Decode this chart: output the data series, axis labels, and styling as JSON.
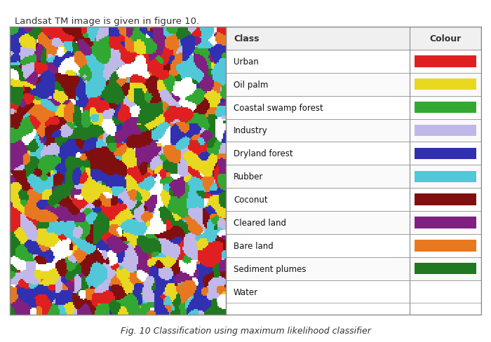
{
  "title_top": "Landsat TM image is given in figure 10.",
  "caption": "Fig. 10 Classification using maximum likelihood classifier",
  "table_header": [
    "Class",
    "Colour"
  ],
  "classes": [
    "Urban",
    "Oil palm",
    "Coastal swamp forest",
    "Industry",
    "Dryland forest",
    "Rubber",
    "Coconut",
    "Cleared land",
    "Bare land",
    "Sediment plumes",
    "Water"
  ],
  "colors": [
    "#e02020",
    "#e8d820",
    "#32a832",
    "#c0b8e8",
    "#3030b0",
    "#50c8d8",
    "#801010",
    "#802080",
    "#e87820",
    "#207820",
    "#ffffff"
  ],
  "bg_color": "#ffffff",
  "table_bg": "#ffffff",
  "header_text_color": "#333333",
  "cell_text_color": "#111111",
  "border_color": "#888888",
  "fig_width": 7.0,
  "fig_height": 4.89
}
